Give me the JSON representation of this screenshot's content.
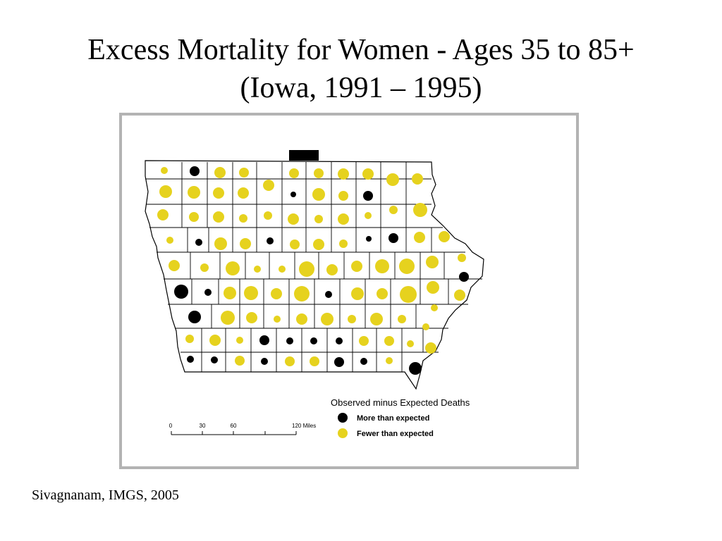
{
  "title": {
    "line1": "Excess Mortality for Women - Ages 35 to 85+",
    "line2": "(Iowa, 1991 – 1995)"
  },
  "legend": {
    "heading": "Observed minus Expected Deaths",
    "items": [
      {
        "label": "More than expected",
        "color": "#000000",
        "icon": "black-dot-icon"
      },
      {
        "label": "Fewer than expected",
        "color": "#e6d21e",
        "icon": "yellow-dot-icon"
      }
    ]
  },
  "scale_bar": {
    "ticks": [
      "0",
      "30",
      "60",
      "120 Miles"
    ]
  },
  "credit": "Sivagnanam, IMGS, 2005",
  "colors": {
    "more": "#000000",
    "fewer": "#e6d21e",
    "frame": "#b3b3b3",
    "boundary": "#000000"
  }
}
